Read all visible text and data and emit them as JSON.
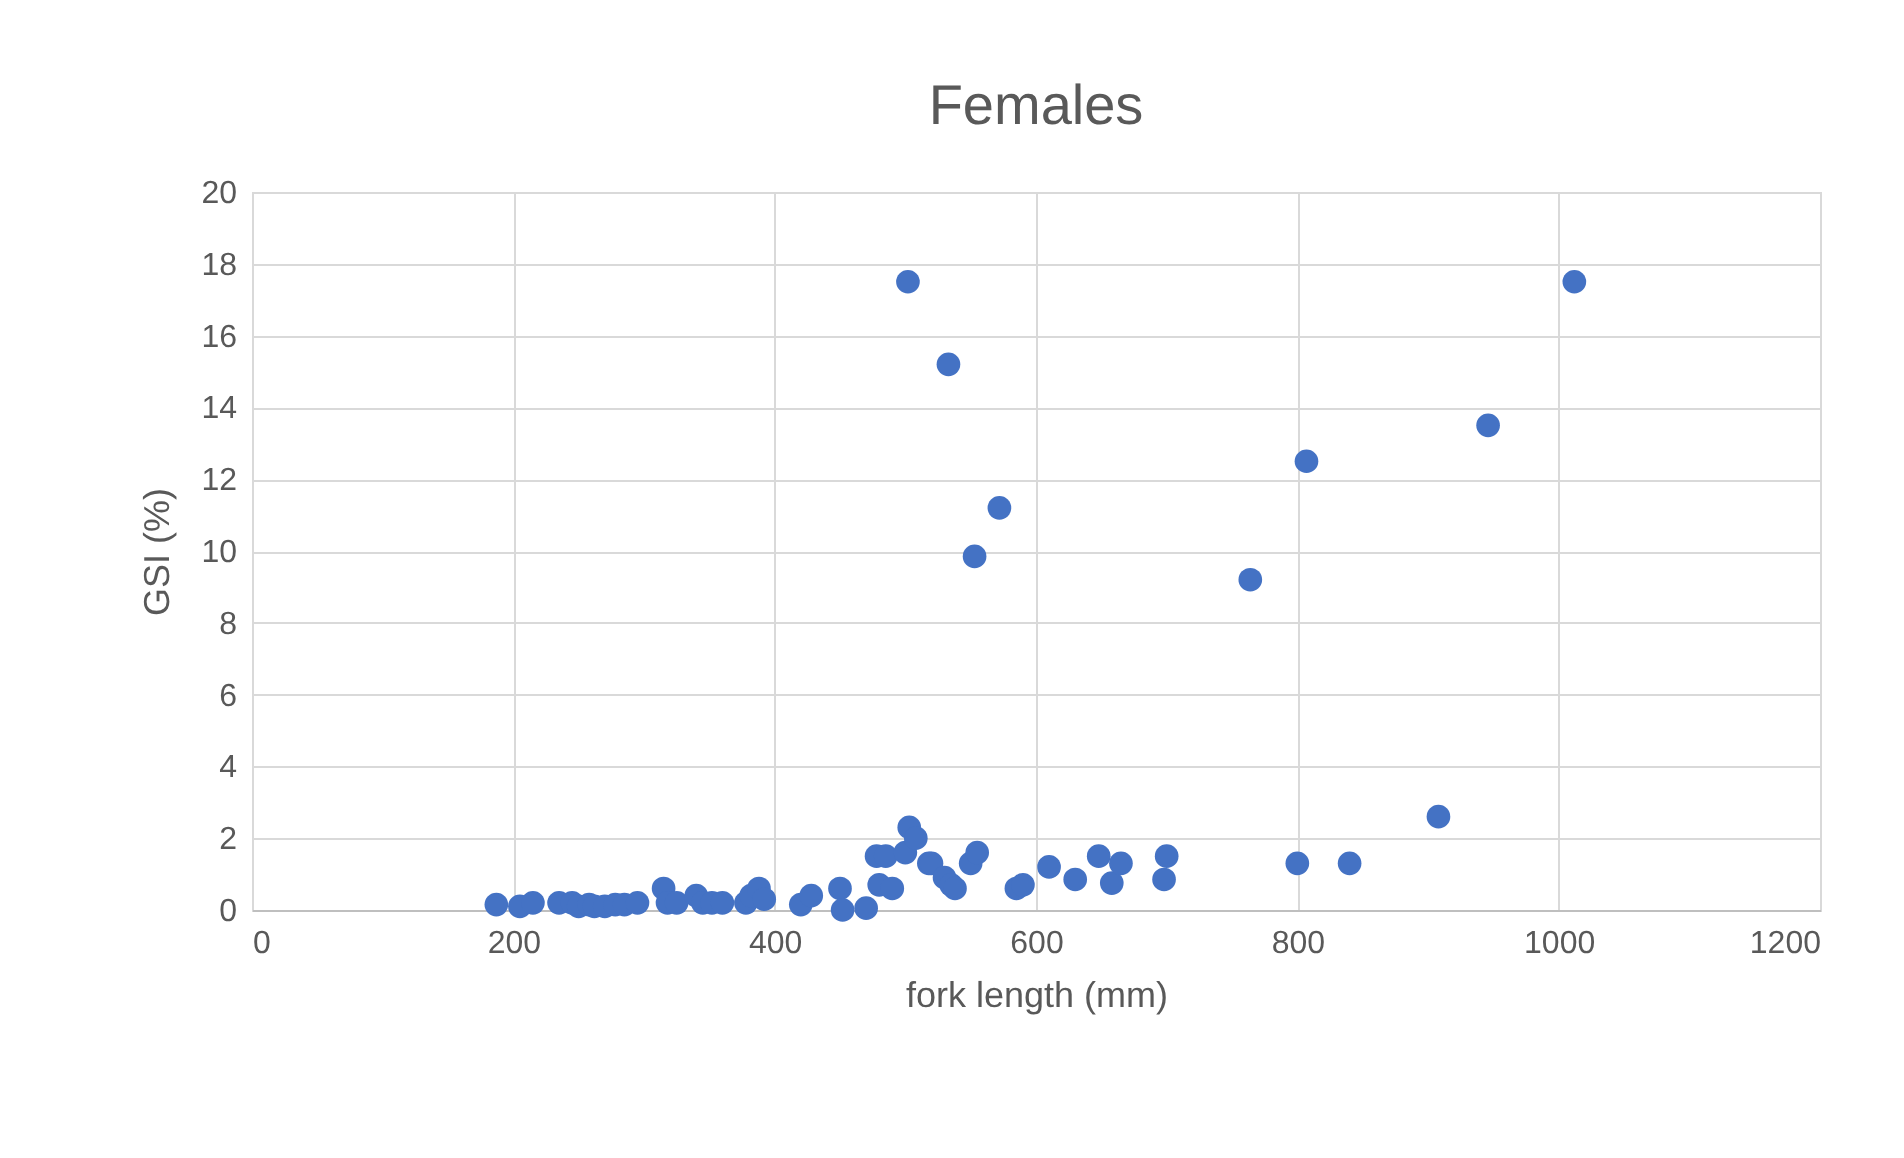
{
  "chart_data": {
    "type": "scatter",
    "title": "Females",
    "xlabel": "fork length (mm)",
    "ylabel": "GSI (%)",
    "x": [
      187,
      205,
      215,
      235,
      245,
      250,
      258,
      262,
      270,
      278,
      285,
      295,
      315,
      318,
      325,
      340,
      345,
      352,
      360,
      378,
      382,
      388,
      392,
      420,
      428,
      450,
      452,
      470,
      478,
      480,
      485,
      490,
      500,
      503,
      508,
      518,
      520,
      530,
      535,
      538,
      550,
      555,
      585,
      590,
      610,
      630,
      648,
      658,
      665,
      698,
      700,
      800,
      840,
      908,
      502,
      533,
      572,
      553,
      764,
      807,
      946,
      1012
    ],
    "series": [
      {
        "color": "#4472c4",
        "values": [
          0.15,
          0.1,
          0.2,
          0.2,
          0.2,
          0.1,
          0.15,
          0.1,
          0.1,
          0.15,
          0.15,
          0.2,
          0.6,
          0.2,
          0.2,
          0.4,
          0.2,
          0.2,
          0.2,
          0.2,
          0.4,
          0.6,
          0.3,
          0.15,
          0.4,
          0.6,
          0.0,
          0.05,
          1.5,
          0.7,
          1.5,
          0.6,
          1.6,
          2.3,
          2.0,
          1.3,
          1.3,
          0.9,
          0.7,
          0.6,
          1.3,
          1.6,
          0.6,
          0.7,
          1.2,
          0.85,
          1.5,
          0.75,
          1.3,
          0.85,
          1.5,
          1.3,
          1.3,
          2.6,
          17.5,
          15.2,
          11.2,
          9.85,
          9.2,
          12.5,
          13.5,
          17.5
        ]
      }
    ],
    "xlim": [
      0,
      1200
    ],
    "xticks": [
      0,
      200,
      400,
      600,
      800,
      1000,
      1200
    ],
    "ylim": [
      0,
      20
    ],
    "yticks": [
      0,
      2,
      4,
      6,
      8,
      10,
      12,
      14,
      16,
      18,
      20
    ],
    "grid": true,
    "marker": "circle"
  }
}
